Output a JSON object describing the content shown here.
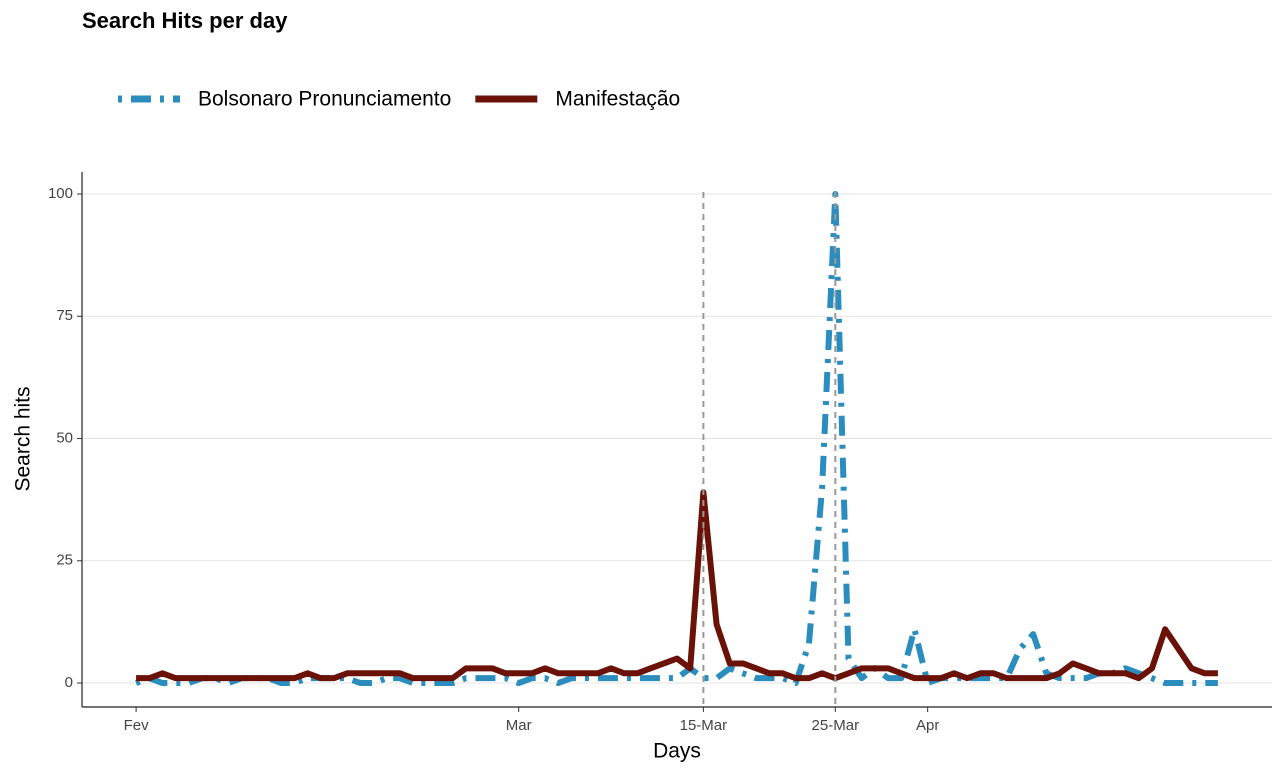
{
  "chart_data": {
    "type": "line",
    "title": "Search Hits per day",
    "x_label": "Days",
    "y_label": "Search hits",
    "x": [
      0,
      1,
      2,
      3,
      4,
      5,
      6,
      7,
      8,
      9,
      10,
      11,
      12,
      13,
      14,
      15,
      16,
      17,
      18,
      19,
      20,
      21,
      22,
      23,
      24,
      25,
      26,
      27,
      28,
      29,
      30,
      31,
      32,
      33,
      34,
      35,
      36,
      37,
      38,
      39,
      40,
      41,
      42,
      43,
      44,
      45,
      46,
      47,
      48,
      49,
      50,
      51,
      52,
      53,
      54,
      55,
      56,
      57,
      58,
      59,
      60,
      61,
      62,
      63,
      64,
      65,
      66,
      67,
      68,
      69,
      70,
      71,
      72,
      73,
      74,
      75,
      76,
      77,
      78,
      79,
      80,
      81,
      82
    ],
    "series": [
      {
        "name": "Bolsonaro Pronunciamento",
        "color": "#2b8cbe",
        "dash": "4 9 20 9",
        "values": [
          0,
          1,
          0,
          0,
          0,
          1,
          1,
          0,
          1,
          1,
          1,
          0,
          0,
          1,
          1,
          1,
          1,
          0,
          0,
          1,
          1,
          0,
          0,
          0,
          0,
          1,
          1,
          1,
          1,
          0,
          1,
          1,
          0,
          1,
          1,
          1,
          1,
          1,
          1,
          1,
          1,
          1,
          3,
          1,
          1,
          3,
          2,
          1,
          1,
          1,
          0,
          8,
          40,
          100,
          5,
          1,
          3,
          1,
          1,
          11,
          0,
          1,
          1,
          1,
          1,
          1,
          1,
          7,
          10,
          2,
          1,
          1,
          1,
          2,
          2,
          3,
          2,
          1,
          0,
          0,
          0,
          0,
          0
        ]
      },
      {
        "name": "Manifestação",
        "color": "#6b1208",
        "dash": "none",
        "values": [
          1,
          1,
          2,
          1,
          1,
          1,
          1,
          1,
          1,
          1,
          1,
          1,
          1,
          2,
          1,
          1,
          2,
          2,
          2,
          2,
          2,
          1,
          1,
          1,
          1,
          3,
          3,
          3,
          2,
          2,
          2,
          3,
          2,
          2,
          2,
          2,
          3,
          2,
          2,
          3,
          4,
          5,
          3,
          39,
          12,
          4,
          4,
          3,
          2,
          2,
          1,
          1,
          2,
          1,
          2,
          3,
          3,
          3,
          2,
          1,
          1,
          1,
          2,
          1,
          2,
          2,
          1,
          1,
          1,
          1,
          2,
          4,
          3,
          2,
          2,
          2,
          1,
          3,
          11,
          7,
          3,
          2,
          2
        ]
      }
    ],
    "xlim": [
      -4.1,
      86.1
    ],
    "xticks": [
      {
        "value": 0,
        "label": "Fev"
      },
      {
        "value": 29,
        "label": "Mar"
      },
      {
        "value": 43,
        "label": "15-Mar"
      },
      {
        "value": 53,
        "label": "25-Mar"
      },
      {
        "value": 60,
        "label": "Apr"
      }
    ],
    "ylim": [
      -4.9,
      104.5
    ],
    "yticks": [
      0,
      25,
      50,
      75,
      100
    ],
    "vlines": [
      43,
      53
    ],
    "grid": true
  }
}
